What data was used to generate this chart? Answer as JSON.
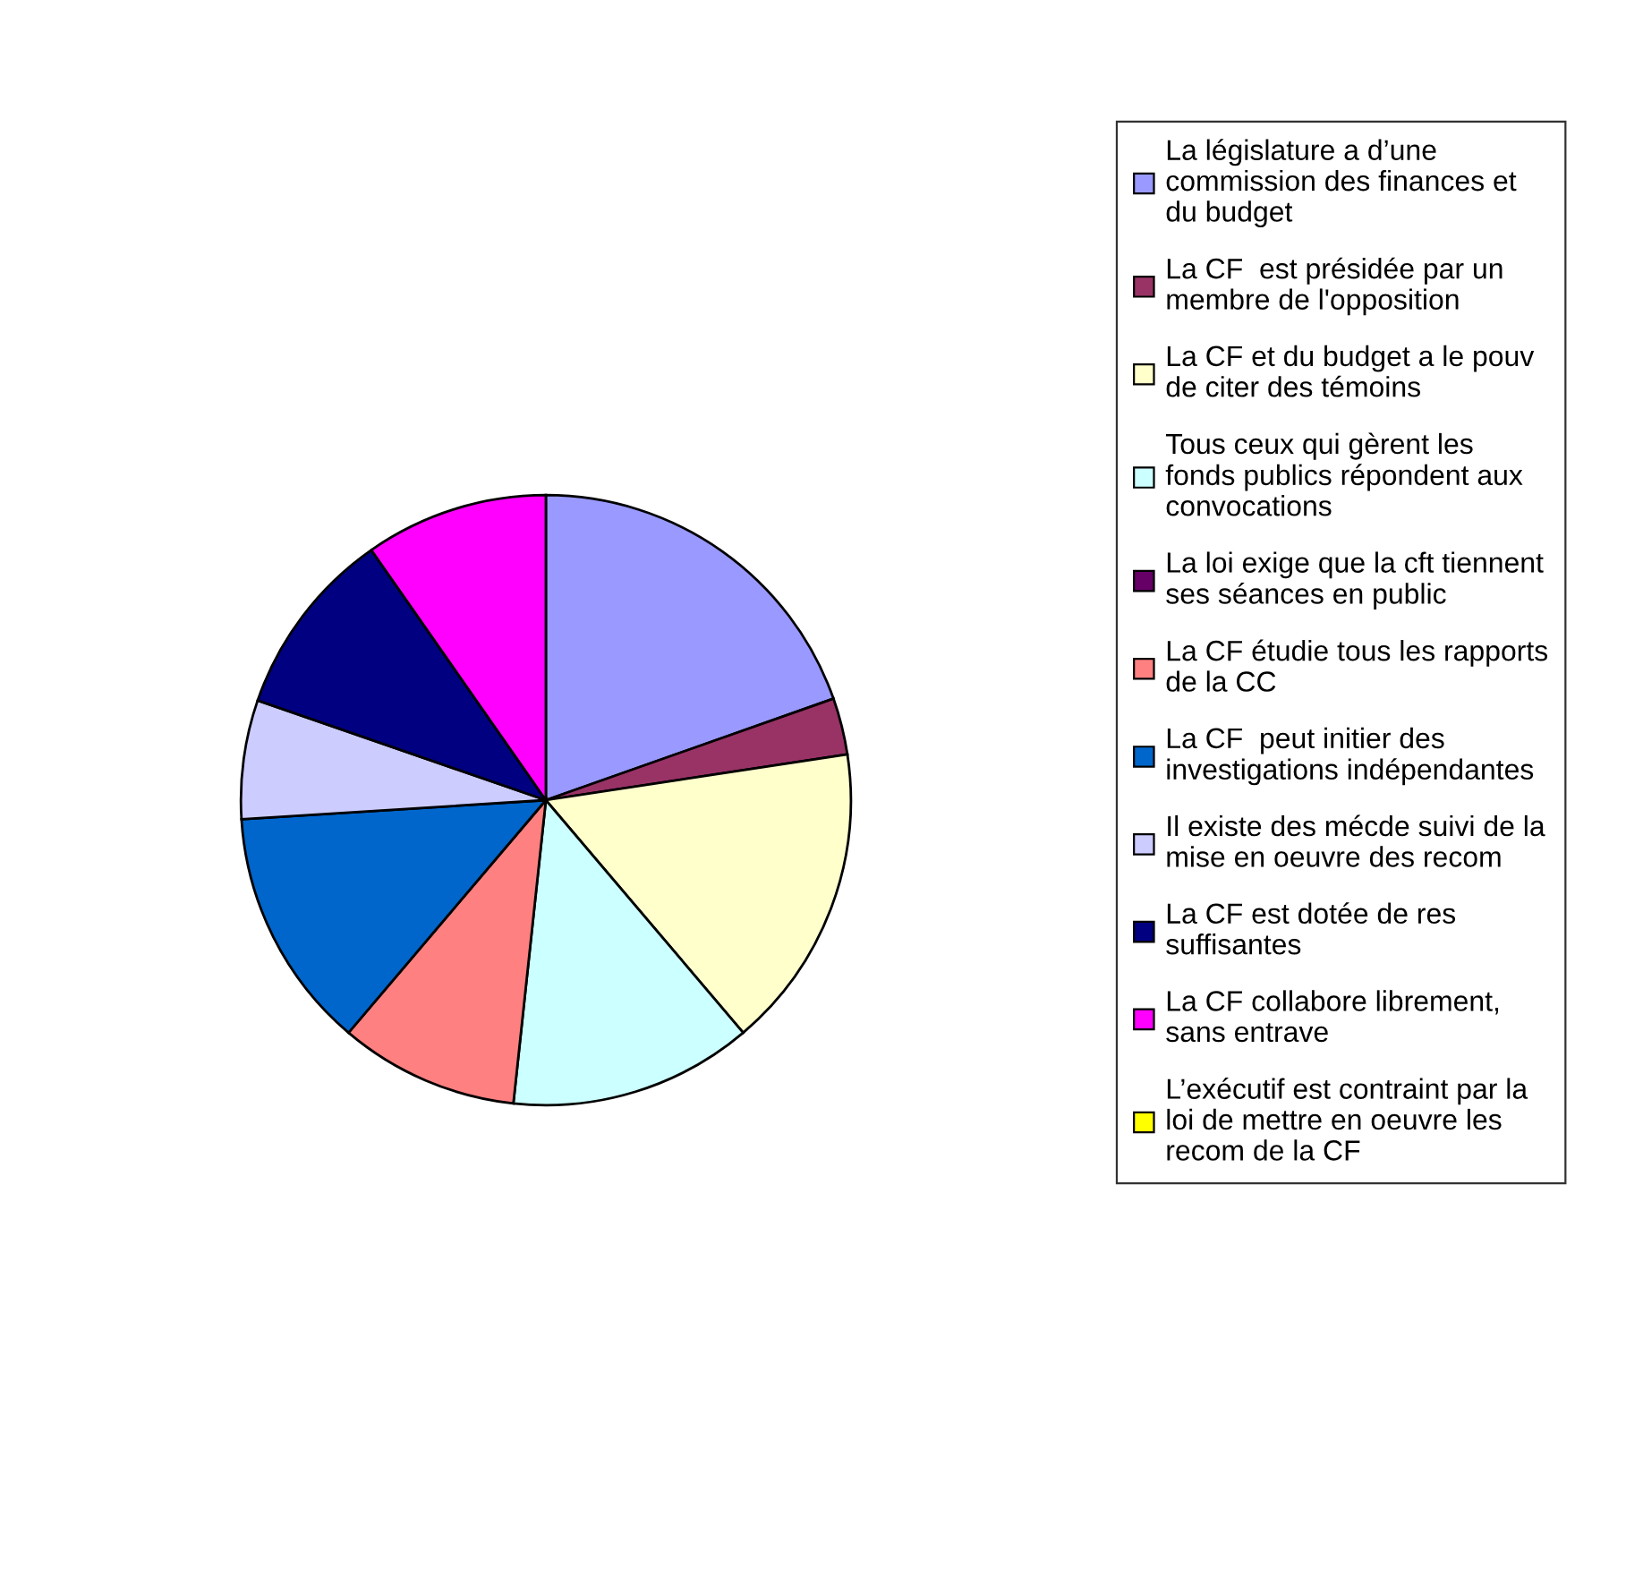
{
  "chart_data": {
    "type": "pie",
    "categories": [
      "La législature a d’une\ncommission des finances et\ndu budget",
      "La CF  est présidée par un\nmembre de l'opposition",
      "La CF et du budget a le pouv\nde citer des témoins",
      "Tous ceux qui gèrent les\nfonds publics répondent aux\nconvocations",
      "La loi exige que la cft tiennent\nses séances en public",
      "La CF étudie tous les rapports\nde la CC",
      "La CF  peut initier des\ninvestigations indépendantes",
      "Il existe des mécde suivi de la\nmise en oeuvre des recom",
      "La CF est dotée de res\nsuffisantes",
      "La CF collabore librement,\nsans entrave",
      "L’exécutif est contraint par la\nloi de mettre en oeuvre les\nrecom de la CF"
    ],
    "values": [
      19.6,
      3,
      16.2,
      12.9,
      0,
      9.5,
      12.8,
      6.3,
      10,
      9.7,
      0
    ],
    "colors": [
      "#9999ff",
      "#993366",
      "#ffffcc",
      "#ccffff",
      "#660066",
      "#ff8080",
      "#0066cc",
      "#ccccff",
      "#000080",
      "#ff00ff",
      "#ffff00"
    ],
    "legend": "right"
  }
}
